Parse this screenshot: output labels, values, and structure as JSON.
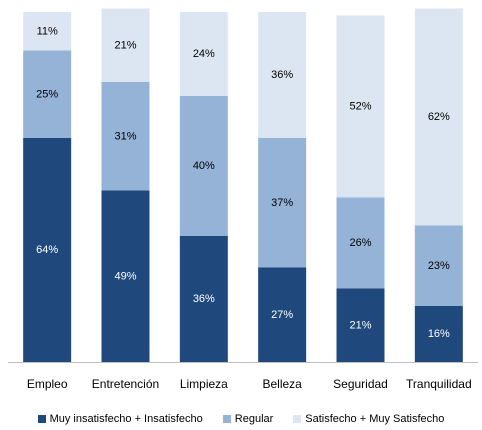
{
  "chart_data": {
    "type": "bar",
    "stacked": true,
    "percent": true,
    "title": "",
    "xlabel": "",
    "ylabel": "",
    "ylim": [
      0,
      100
    ],
    "grid": false,
    "legend_position": "bottom",
    "categories": [
      "Empleo",
      "Entretención",
      "Limpieza",
      "Belleza",
      "Seguridad",
      "Tranquilidad"
    ],
    "series": [
      {
        "name": "Muy insatisfecho + Insatisfecho",
        "color": "#1f497d",
        "label_color": "#ffffff",
        "values": [
          64,
          49,
          36,
          27,
          21,
          16
        ],
        "labels": [
          "64%",
          "49%",
          "36%",
          "27%",
          "21%",
          "16%"
        ]
      },
      {
        "name": "Regular",
        "color": "#95b3d7",
        "label_color": "#000000",
        "values": [
          25,
          31,
          40,
          37,
          26,
          23
        ],
        "labels": [
          "25%",
          "31%",
          "40%",
          "37%",
          "26%",
          "23%"
        ]
      },
      {
        "name": "Satisfecho + Muy Satisfecho",
        "color": "#dce6f2",
        "label_color": "#000000",
        "values": [
          11,
          21,
          24,
          36,
          52,
          62
        ],
        "labels": [
          "11%",
          "21%",
          "24%",
          "36%",
          "52%",
          "62%"
        ]
      }
    ]
  }
}
